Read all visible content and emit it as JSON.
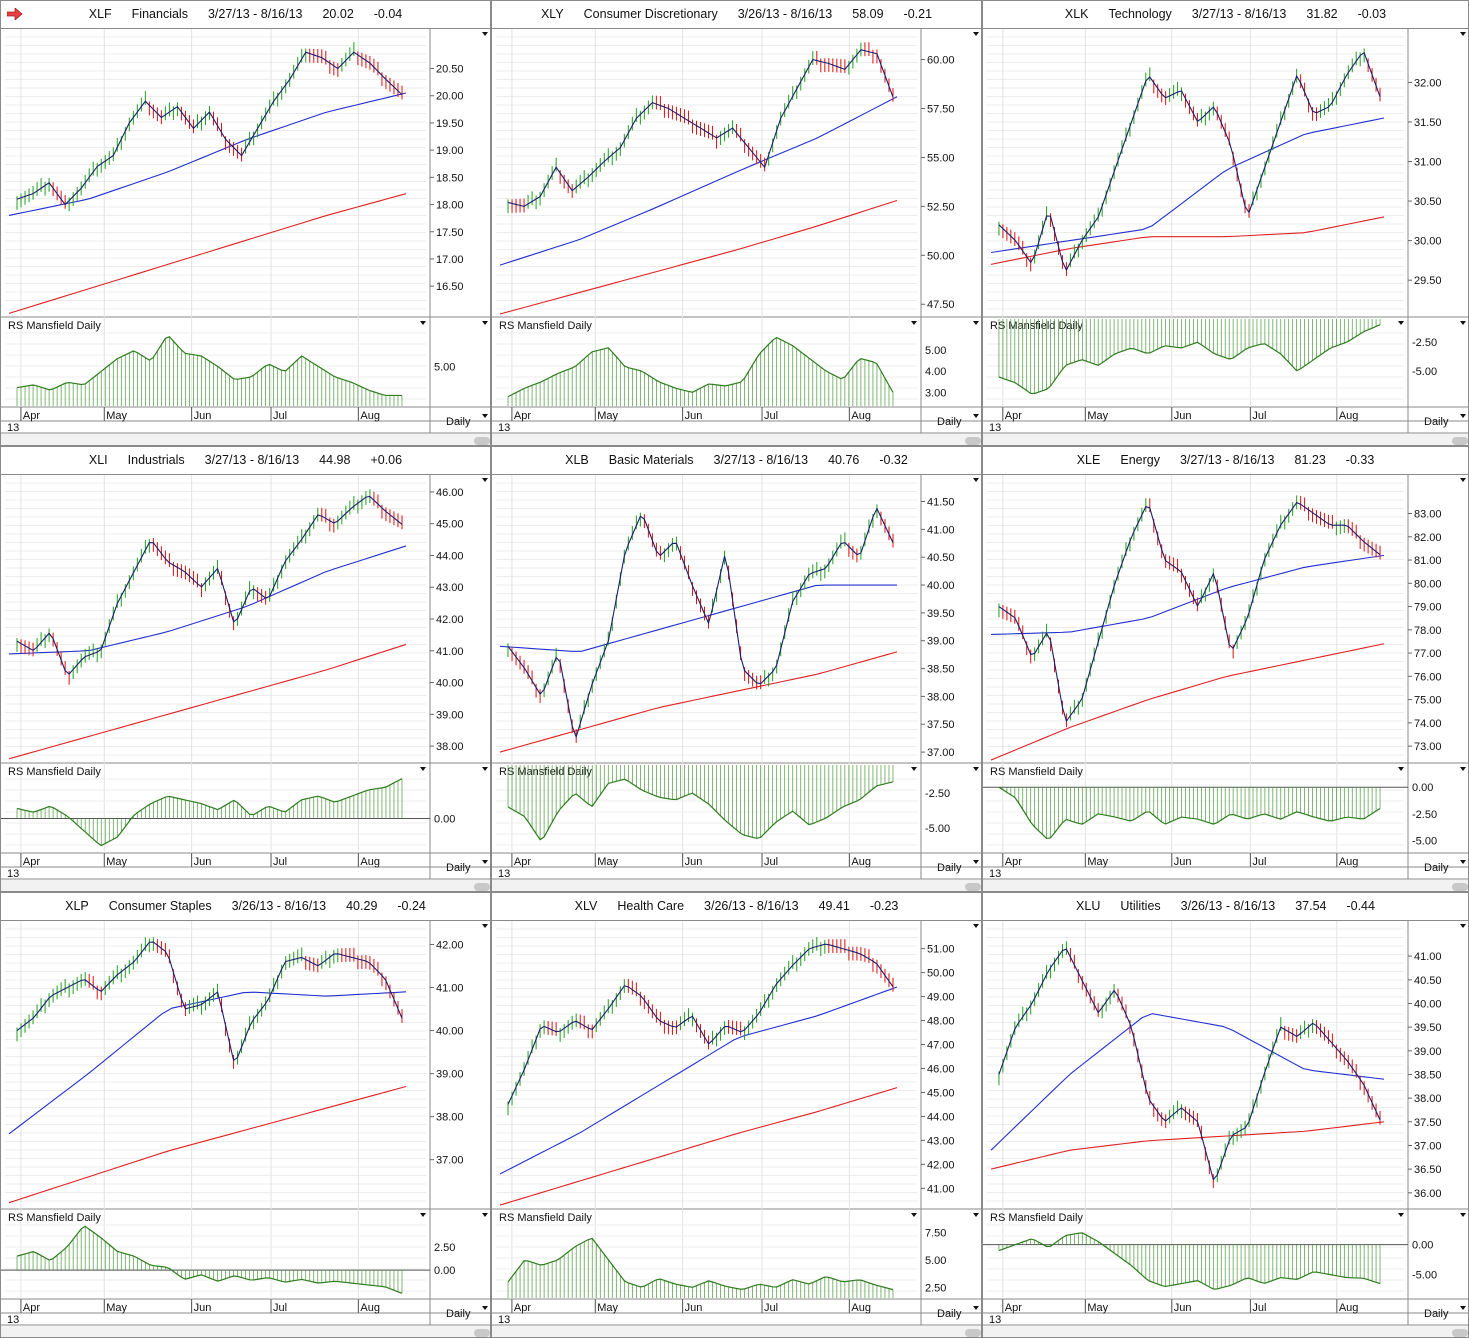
{
  "x_axis": {
    "year_label": "13",
    "period_label": "Daily",
    "total_days": 100,
    "months": [
      {
        "label": "Apr",
        "day": 3
      },
      {
        "label": "May",
        "day": 24
      },
      {
        "label": "Jun",
        "day": 46
      },
      {
        "label": "Jul",
        "day": 66
      },
      {
        "label": "Aug",
        "day": 88
      }
    ]
  },
  "colors": {
    "price": "#1a1f6e",
    "ma50": "#2030d0",
    "ma200": "#e02020",
    "up": "#1fa01f",
    "down": "#e01010",
    "rs": "#2e7d1e",
    "rs_bar": "#4a9a3a"
  },
  "rs_title": "RS Mansfield Daily",
  "chart_data": [
    {
      "type": "line",
      "symbol": "XLF",
      "name": "Financials",
      "dates": "3/27/13 - 8/16/13",
      "last": "20.02",
      "change": "-0.04",
      "ylim": [
        15.97,
        21.19
      ],
      "ticks": [
        "16.50",
        "17.00",
        "17.50",
        "18.00",
        "18.50",
        "19.00",
        "19.50",
        "20.00",
        "20.50"
      ],
      "close": [
        18.1,
        18.2,
        18.4,
        18.0,
        18.3,
        18.7,
        18.9,
        19.5,
        19.9,
        19.6,
        19.8,
        19.4,
        19.7,
        19.2,
        18.9,
        19.4,
        19.9,
        20.3,
        20.8,
        20.7,
        20.5,
        20.8,
        20.6,
        20.3,
        20.02
      ],
      "ma50": [
        17.8,
        18.1,
        18.6,
        19.2,
        19.7,
        20.05
      ],
      "ma200": [
        16.0,
        16.45,
        16.9,
        17.35,
        17.8,
        18.2
      ],
      "rs": {
        "ylim": [
          3.5,
          6.8
        ],
        "ticks": [
          "5.00"
        ],
        "baseline": 3.5,
        "values": [
          4.2,
          4.3,
          4.1,
          4.4,
          4.3,
          4.8,
          5.3,
          5.6,
          5.2,
          6.2,
          5.5,
          5.4,
          5.0,
          4.5,
          4.6,
          5.1,
          4.8,
          5.4,
          5.0,
          4.6,
          4.4,
          4.1,
          3.9,
          3.9
        ]
      }
    },
    {
      "type": "line",
      "symbol": "XLY",
      "name": "Consumer Discretionary",
      "dates": "3/26/13 - 8/16/13",
      "last": "58.09",
      "change": "-0.21",
      "ylim": [
        46.95,
        61.46
      ],
      "ticks": [
        "47.50",
        "50.00",
        "52.50",
        "55.00",
        "57.50",
        "60.00"
      ],
      "close": [
        52.7,
        52.5,
        53,
        54.5,
        53.3,
        54,
        54.8,
        55.5,
        57,
        57.8,
        57.5,
        57,
        56.5,
        56,
        56.5,
        55.5,
        54.5,
        57,
        58.5,
        60,
        59.8,
        59.5,
        60.5,
        60.3,
        58.09
      ],
      "ma50": [
        49.5,
        50.8,
        52.5,
        54.3,
        56.0,
        58.1
      ],
      "ma200": [
        47.0,
        48.1,
        49.2,
        50.3,
        51.5,
        52.8
      ],
      "rs": {
        "ylim": [
          2.36,
          6.45
        ],
        "ticks": [
          "3.00",
          "4.00",
          "5.00"
        ],
        "baseline": 2.36,
        "values": [
          2.8,
          3.2,
          3.5,
          3.9,
          4.2,
          4.9,
          5.1,
          4.2,
          4.0,
          3.5,
          3.2,
          3.0,
          3.4,
          3.3,
          3.5,
          4.8,
          5.6,
          5.2,
          4.6,
          4.0,
          3.6,
          4.6,
          4.4,
          3.0
        ]
      }
    },
    {
      "type": "line",
      "symbol": "XLK",
      "name": "Technology",
      "dates": "3/27/13 - 8/16/13",
      "last": "31.82",
      "change": "-0.03",
      "ylim": [
        29.06,
        32.65
      ],
      "ticks": [
        "29.50",
        "30.00",
        "30.50",
        "31.00",
        "31.50",
        "32.00"
      ],
      "close": [
        30.2,
        30.0,
        29.7,
        30.4,
        29.6,
        30.0,
        30.3,
        30.9,
        31.5,
        32.1,
        31.8,
        31.9,
        31.5,
        31.7,
        31.2,
        30.3,
        30.9,
        31.5,
        32.1,
        31.6,
        31.7,
        32.1,
        32.4,
        31.82
      ],
      "ma50": [
        29.85,
        30.0,
        30.15,
        30.9,
        31.35,
        31.55
      ],
      "ma200": [
        29.7,
        29.9,
        30.05,
        30.05,
        30.1,
        30.3
      ],
      "rs": {
        "ylim": [
          -8.0,
          -0.5
        ],
        "ticks": [
          "-2.50",
          "-5.00"
        ],
        "baseline": -0.5,
        "values": [
          -5.5,
          -6.0,
          -7.0,
          -6.5,
          -4.5,
          -4.0,
          -4.5,
          -3.5,
          -3.0,
          -3.5,
          -2.8,
          -3.0,
          -2.5,
          -3.5,
          -4.0,
          -3.0,
          -2.6,
          -3.5,
          -5.0,
          -4.0,
          -3.0,
          -2.5,
          -1.6,
          -1.0
        ]
      }
    },
    {
      "type": "line",
      "symbol": "XLI",
      "name": "Industrials",
      "dates": "3/27/13 - 8/16/13",
      "last": "44.98",
      "change": "+0.06",
      "ylim": [
        37.53,
        46.47
      ],
      "ticks": [
        "38.00",
        "39.00",
        "40.00",
        "41.00",
        "42.00",
        "43.00",
        "44.00",
        "45.00",
        "46.00"
      ],
      "close": [
        41.3,
        41.0,
        41.6,
        40.2,
        40.8,
        41.0,
        42.5,
        43.5,
        44.5,
        43.8,
        43.5,
        43.0,
        43.6,
        41.8,
        43.0,
        42.6,
        43.8,
        44.5,
        45.3,
        45.0,
        45.5,
        45.9,
        45.4,
        44.98
      ],
      "ma50": [
        40.9,
        41.0,
        41.6,
        42.4,
        43.5,
        44.3
      ],
      "ma200": [
        37.6,
        38.3,
        39.0,
        39.7,
        40.4,
        41.2
      ],
      "rs": {
        "ylim": [
          -2.7,
          4.3
        ],
        "ticks": [
          "0.00"
        ],
        "baseline": 0,
        "values": [
          0.8,
          0.5,
          1,
          0.2,
          -1,
          -2.2,
          -1.5,
          0.3,
          1.2,
          1.8,
          1.5,
          1.2,
          0.7,
          1.5,
          0.2,
          1.0,
          0.5,
          1.5,
          1.8,
          1.3,
          1.8,
          2.3,
          2.5,
          3.2
        ]
      }
    },
    {
      "type": "line",
      "symbol": "XLB",
      "name": "Basic Materials",
      "dates": "3/27/13 - 8/16/13",
      "last": "40.76",
      "change": "-0.32",
      "ylim": [
        36.84,
        41.94
      ],
      "ticks": [
        "37.00",
        "37.50",
        "38.00",
        "38.50",
        "39.00",
        "39.50",
        "40.00",
        "40.50",
        "41.00",
        "41.50"
      ],
      "close": [
        38.9,
        38.5,
        38.0,
        38.8,
        37.2,
        38.2,
        39.0,
        40.6,
        41.3,
        40.5,
        40.8,
        40.0,
        39.3,
        40.6,
        38.5,
        38.2,
        38.5,
        39.7,
        40.2,
        40.3,
        40.8,
        40.5,
        41.4,
        40.76
      ],
      "ma50": [
        38.9,
        38.8,
        39.2,
        39.6,
        40.0,
        40.0
      ],
      "ma200": [
        37.0,
        37.4,
        37.8,
        38.1,
        38.4,
        38.8
      ],
      "rs": {
        "ylim": [
          -6.74,
          -0.49
        ],
        "ticks": [
          "-2.50",
          "-5.00"
        ],
        "baseline": -0.49,
        "values": [
          -3.5,
          -4.2,
          -6.0,
          -3.8,
          -2.5,
          -3.5,
          -1.8,
          -1.5,
          -2.3,
          -2.8,
          -3.0,
          -2.5,
          -3.3,
          -4.5,
          -5.5,
          -5.8,
          -4.6,
          -3.8,
          -4.8,
          -4.3,
          -3.5,
          -3.0,
          -2.0,
          -1.7
        ]
      }
    },
    {
      "type": "line",
      "symbol": "XLE",
      "name": "Energy",
      "dates": "3/27/13 - 8/16/13",
      "last": "81.23",
      "change": "-0.33",
      "ylim": [
        72.36,
        84.57
      ],
      "ticks": [
        "73.00",
        "74.00",
        "75.00",
        "76.00",
        "77.00",
        "78.00",
        "79.00",
        "80.00",
        "81.00",
        "82.00",
        "83.00"
      ],
      "close": [
        79.0,
        78.5,
        76.8,
        78.0,
        74.0,
        75.0,
        77.5,
        80.0,
        82.0,
        83.5,
        81.0,
        80.5,
        79.0,
        80.5,
        77.0,
        78.5,
        81.0,
        82.5,
        83.5,
        83.0,
        82.5,
        82.5,
        81.8,
        81.23
      ],
      "ma50": [
        77.8,
        77.9,
        78.5,
        79.8,
        80.7,
        81.2
      ],
      "ma200": [
        72.4,
        73.8,
        75.0,
        76.0,
        76.7,
        77.4
      ],
      "rs": {
        "ylim": [
          -6.09,
          2.09
        ],
        "ticks": [
          "0.00",
          "-2.50",
          "-5.00"
        ],
        "baseline": 0,
        "values": [
          0,
          -1,
          -3.5,
          -5.0,
          -3.0,
          -3.5,
          -2.5,
          -2.8,
          -3.2,
          -2.2,
          -3.5,
          -2.8,
          -3.0,
          -3.5,
          -2.5,
          -3.0,
          -2.5,
          -3.0,
          -2.3,
          -2.8,
          -3.2,
          -2.8,
          -3.0,
          -2.0
        ]
      }
    },
    {
      "type": "line",
      "symbol": "XLP",
      "name": "Consumer Staples",
      "dates": "3/26/13 - 8/16/13",
      "last": "40.29",
      "change": "-0.24",
      "ylim": [
        35.9,
        42.5
      ],
      "ticks": [
        "37.00",
        "38.00",
        "39.00",
        "40.00",
        "41.00",
        "42.00"
      ],
      "close": [
        40.0,
        40.3,
        40.8,
        41.0,
        41.2,
        40.9,
        41.3,
        41.6,
        42.1,
        41.8,
        40.5,
        40.6,
        40.9,
        39.2,
        40.2,
        40.7,
        41.6,
        41.7,
        41.5,
        41.8,
        41.7,
        41.6,
        41.2,
        40.29
      ],
      "ma50": [
        37.6,
        39.0,
        40.5,
        40.9,
        40.8,
        40.9
      ],
      "ma200": [
        36.0,
        36.6,
        37.2,
        37.7,
        38.2,
        38.7
      ],
      "rs": {
        "ylim": [
          -3.0,
          6.35
        ],
        "ticks": [
          "2.50",
          "0.00"
        ],
        "baseline": 0,
        "values": [
          1.5,
          2.0,
          1.0,
          2.5,
          4.8,
          3.5,
          2.0,
          1.5,
          0.5,
          0.3,
          -1.0,
          -0.5,
          -1.2,
          -0.6,
          -1.1,
          -0.8,
          -1.3,
          -1.0,
          -1.4,
          -1.2,
          -1.4,
          -1.6,
          -1.8,
          -2.5
        ]
      }
    },
    {
      "type": "line",
      "symbol": "XLV",
      "name": "Health Care",
      "dates": "3/26/13 - 8/16/13",
      "last": "49.41",
      "change": "-0.23",
      "ylim": [
        40.22,
        52.07
      ],
      "ticks": [
        "41.00",
        "42.00",
        "43.00",
        "44.00",
        "45.00",
        "46.00",
        "47.00",
        "48.00",
        "49.00",
        "50.00",
        "51.00"
      ],
      "close": [
        44.5,
        46.0,
        47.8,
        47.5,
        48.0,
        47.6,
        48.5,
        49.5,
        49.0,
        48.0,
        47.7,
        48.2,
        47.0,
        47.8,
        47.5,
        48.3,
        49.5,
        50.3,
        51.0,
        51.2,
        51.0,
        50.8,
        50.4,
        49.41
      ],
      "ma50": [
        41.6,
        43.3,
        45.3,
        47.3,
        48.2,
        49.4
      ],
      "ma200": [
        40.3,
        41.3,
        42.3,
        43.3,
        44.2,
        45.2
      ],
      "rs": {
        "ylim": [
          1.54,
          9.43
        ],
        "ticks": [
          "7.50",
          "5.00",
          "2.50"
        ],
        "baseline": 1.54,
        "values": [
          3.0,
          5.0,
          4.5,
          5.0,
          6.2,
          7.0,
          5.0,
          3.0,
          2.5,
          3.3,
          2.8,
          2.5,
          3.1,
          2.6,
          2.3,
          2.8,
          2.5,
          3.2,
          2.8,
          3.5,
          3.0,
          3.2,
          2.7,
          2.3
        ]
      }
    },
    {
      "type": "line",
      "symbol": "XLU",
      "name": "Utilities",
      "dates": "3/26/13 - 8/16/13",
      "last": "37.54",
      "change": "-0.44",
      "ylim": [
        35.7,
        41.7
      ],
      "ticks": [
        "36.00",
        "36.50",
        "37.00",
        "37.50",
        "38.00",
        "38.50",
        "39.00",
        "39.50",
        "40.00",
        "40.50",
        "41.00"
      ],
      "close": [
        38.5,
        39.5,
        40.0,
        40.7,
        41.2,
        40.5,
        39.8,
        40.3,
        39.5,
        38.0,
        37.5,
        37.8,
        37.5,
        36.2,
        37.2,
        37.4,
        38.5,
        39.5,
        39.3,
        39.6,
        39.2,
        38.8,
        38.3,
        37.54
      ],
      "ma50": [
        36.9,
        38.5,
        39.8,
        39.5,
        38.6,
        38.4
      ],
      "ma200": [
        36.5,
        36.9,
        37.1,
        37.2,
        37.3,
        37.5
      ],
      "rs": {
        "ylim": [
          -8.9,
          5.6
        ],
        "ticks": [
          "0.00",
          "-5.00"
        ],
        "baseline": 0,
        "values": [
          -1,
          0,
          1.0,
          -0.5,
          1.5,
          2.0,
          0.5,
          -1.5,
          -3.5,
          -6.0,
          -7.0,
          -6.5,
          -6.0,
          -7.5,
          -6.8,
          -5.5,
          -6.5,
          -5.5,
          -5.8,
          -4.5,
          -5.0,
          -5.5,
          -5.6,
          -6.5
        ]
      }
    }
  ]
}
